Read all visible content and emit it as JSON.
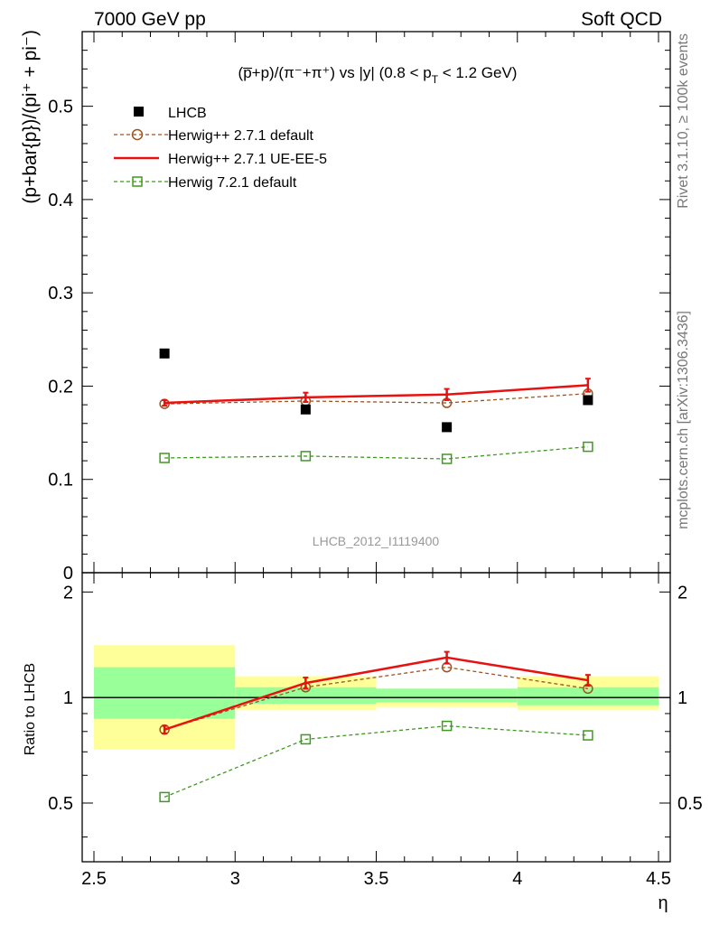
{
  "header": {
    "left": "7000 GeV pp",
    "right": "Soft QCD"
  },
  "side_labels": {
    "rivet": "Rivet 3.1.10, ≥ 100k events",
    "mcplots": "mcplots.cern.ch [arXiv:1306.3436]"
  },
  "colors": {
    "data": "#000000",
    "herwigpp_default": "#a0521f",
    "herwigpp_ueee5": "#e8110f",
    "herwig721": "#3e9a1e",
    "band_inner": "#99ff99",
    "band_outer": "#ffff99"
  },
  "chart_data": [
    {
      "type": "scatter",
      "title_parts": {
        "main": "(p̅+p)/(π⁻+π⁺) vs |y| (0.8 < p",
        "sub": "T",
        "tail": " < 1.2 GeV)"
      },
      "ylabel": "(p+bar{p})/(pi⁺ + pi⁻)",
      "watermark": "LHCB_2012_I1119400",
      "xlim": [
        2.5,
        4.5
      ],
      "ylim": [
        0,
        0.58
      ],
      "yticks": [
        0,
        0.1,
        0.2,
        0.3,
        0.4,
        0.5
      ],
      "ytick_labels": [
        "0",
        "0.1",
        "0.2",
        "0.3",
        "0.4",
        "0.5"
      ],
      "legend_position": "top-left",
      "legend": [
        "LHCB",
        "Herwig++ 2.7.1 default",
        "Herwig++ 2.7.1 UE-EE-5",
        "Herwig 7.2.1 default"
      ],
      "x": [
        2.75,
        3.25,
        3.75,
        4.25
      ],
      "series": [
        {
          "name": "LHCB",
          "values": [
            0.235,
            0.175,
            0.156,
            0.185
          ]
        },
        {
          "name": "Herwig++ 2.7.1 default",
          "values": [
            0.181,
            0.184,
            0.182,
            0.192
          ]
        },
        {
          "name": "Herwig++ 2.7.1 UE-EE-5",
          "values": [
            0.182,
            0.188,
            0.191,
            0.201
          ],
          "errors": [
            0.003,
            0.005,
            0.006,
            0.007
          ]
        },
        {
          "name": "Herwig 7.2.1 default",
          "values": [
            0.123,
            0.125,
            0.122,
            0.135
          ]
        }
      ]
    },
    {
      "type": "line",
      "ylabel": "Ratio to LHCB",
      "xlabel": "η",
      "xlim": [
        2.5,
        4.5
      ],
      "ylim": [
        0.34,
        2.27
      ],
      "xticks": [
        2.5,
        3,
        3.5,
        4,
        4.5
      ],
      "xtick_labels": [
        "2.5",
        "3",
        "3.5",
        "4",
        "4.5"
      ],
      "yticks": [
        0.5,
        1,
        2
      ],
      "ytick_labels": [
        "0.5",
        "1",
        "2"
      ],
      "bins": [
        [
          2.5,
          3
        ],
        [
          3,
          3.5
        ],
        [
          3.5,
          4
        ],
        [
          4,
          4.5
        ]
      ],
      "band_inner": [
        [
          0.87,
          1.22
        ],
        [
          0.96,
          1.07
        ],
        [
          0.97,
          1.06
        ],
        [
          0.95,
          1.07
        ]
      ],
      "band_outer": [
        [
          0.71,
          1.41
        ],
        [
          0.92,
          1.15
        ],
        [
          0.94,
          1.06
        ],
        [
          0.92,
          1.15
        ]
      ],
      "x": [
        2.75,
        3.25,
        3.75,
        4.25
      ],
      "series": [
        {
          "name": "Herwig++ 2.7.1 default",
          "values": [
            0.81,
            1.07,
            1.22,
            1.06
          ]
        },
        {
          "name": "Herwig++ 2.7.1 UE-EE-5",
          "values": [
            0.81,
            1.1,
            1.3,
            1.12
          ],
          "errors": [
            0.02,
            0.04,
            0.05,
            0.04
          ]
        },
        {
          "name": "Herwig 7.2.1 default",
          "values": [
            0.52,
            0.76,
            0.83,
            0.78
          ]
        }
      ]
    }
  ]
}
